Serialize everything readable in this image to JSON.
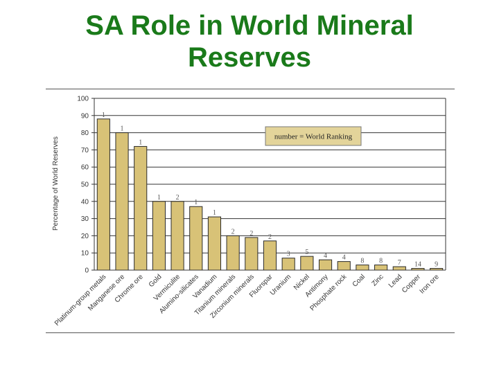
{
  "slide": {
    "title_line1": "SA Role in World Mineral",
    "title_line2": "Reserves"
  },
  "colors": {
    "title": "#1a7a1a",
    "bar_fill": "#d8c277",
    "bar_stroke": "#2b2b2b",
    "legend_fill": "#e3d49a"
  },
  "chart_data": {
    "type": "bar",
    "title": "",
    "xlabel": "",
    "ylabel": "Percentage of World Reserves",
    "ylim": [
      0,
      100
    ],
    "yticks": [
      0,
      10,
      20,
      30,
      40,
      50,
      60,
      70,
      80,
      90,
      100
    ],
    "grid": true,
    "legend": {
      "text": "number = World Ranking",
      "placement": "top-right"
    },
    "categories": [
      "Platinum-group metals",
      "Manganese ore",
      "Chrome ore",
      "Gold",
      "Vermiculite",
      "Alumino-silicates",
      "Vanadium",
      "Titanium minerals",
      "Zirconium minerals",
      "Fluorspar",
      "Uranium",
      "Nickel",
      "Antimony",
      "Phosphate rock",
      "Coal",
      "Zinc",
      "Lead",
      "Copper",
      "Iron ore"
    ],
    "values": [
      88,
      80,
      72,
      40,
      40,
      37,
      31,
      20,
      19,
      17,
      7,
      8,
      6,
      5,
      3,
      3,
      2,
      1,
      1
    ],
    "rankings": [
      "1",
      "1",
      "1",
      "1",
      "2",
      "1",
      "1",
      "2",
      "2",
      "2",
      "3",
      "5",
      "4",
      "4",
      "8",
      "8",
      "7",
      "14",
      "9"
    ]
  }
}
